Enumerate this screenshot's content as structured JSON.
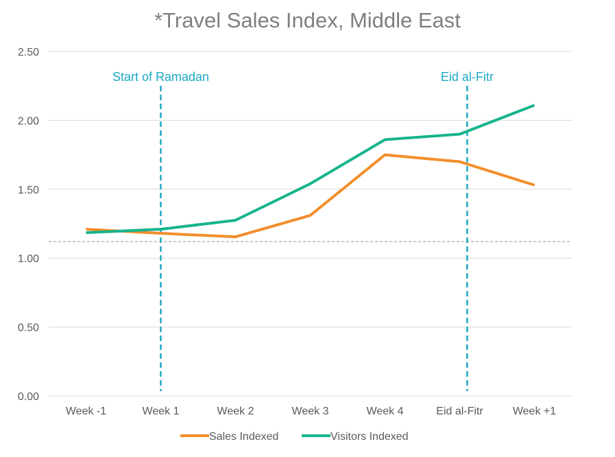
{
  "chart_data": {
    "type": "line",
    "title": "*Travel Sales Index, Middle East",
    "xlabel": "",
    "ylabel": "",
    "categories": [
      "Week -1",
      "Week 1",
      "Week 2",
      "Week 3",
      "Week 4",
      "Eid al-Fitr",
      "Week +1"
    ],
    "ylim": [
      0,
      2.5
    ],
    "yticks": [
      "0.00",
      "0.50",
      "1.00",
      "1.50",
      "2.00",
      "2.50"
    ],
    "grid": true,
    "legend_position": "bottom",
    "series": [
      {
        "name": "Sales Indexed",
        "color": "#f28e2b",
        "values": [
          1.21,
          1.18,
          1.155,
          1.31,
          1.75,
          1.7,
          1.53
        ]
      },
      {
        "name": "Visitors Indexed",
        "color": "#16b48c",
        "values": [
          1.185,
          1.21,
          1.275,
          1.54,
          1.86,
          1.9,
          2.11
        ]
      }
    ],
    "reference_line": {
      "value": 1.12,
      "color": "#a6a6a6"
    },
    "annotations": [
      {
        "label": "Start of Ramadan",
        "at_category_index": 1.0,
        "color": "#1ea7c5"
      },
      {
        "label": "Eid al-Fitr",
        "at_category_index": 5.1,
        "color": "#1ea7c5"
      }
    ]
  }
}
